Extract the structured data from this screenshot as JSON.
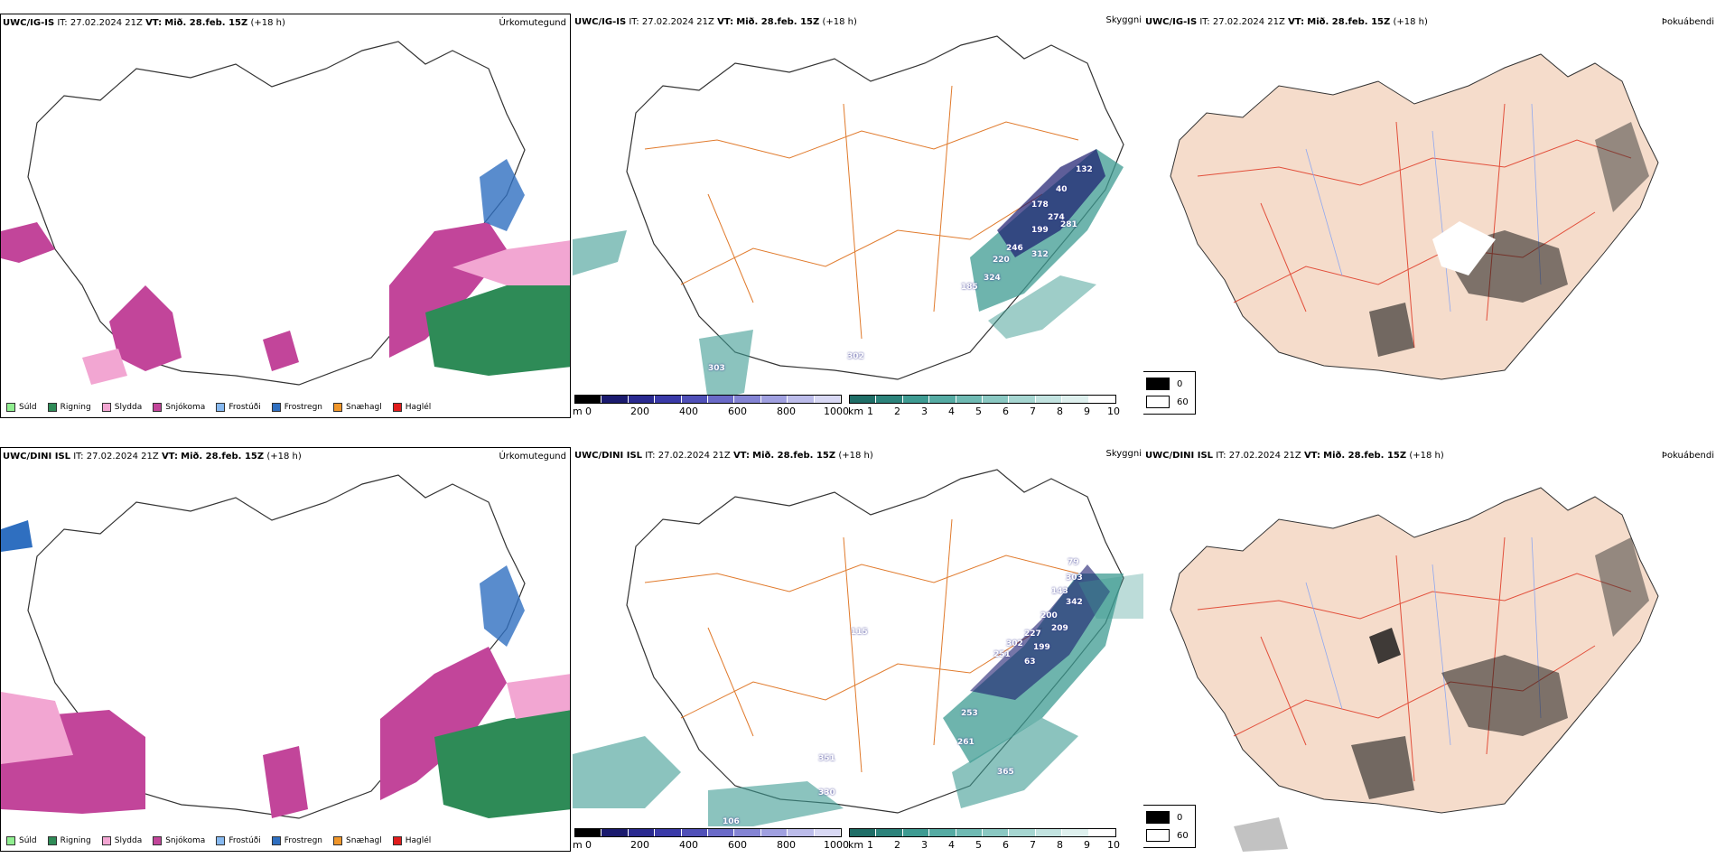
{
  "colors": {
    "suld": "#90ee90",
    "rigning": "#2e8b57",
    "slydda": "#f2a6d2",
    "snjokoma": "#c2459a",
    "frostudi": "#87b9f0",
    "frostregn": "#2f6fc0",
    "snaehagl": "#f0962a",
    "haglel": "#e01c1c",
    "cloud_dark": "#1a1a6e",
    "fog_teal": "#3e9b92",
    "road": "#e07a2c",
    "land": "#f5dccb"
  },
  "rows": [
    {
      "model": "UWC/IG-IS",
      "it": "IT: 27.02.2024 21Z",
      "vt_label": "VT:",
      "vt_value": "Mið. 28.feb. 15Z",
      "lead": "(+18 h)",
      "panels": {
        "precip_title": "Úrkomutegund",
        "cloud_title": "Skyggni",
        "fog_title": "Þokuábendi"
      },
      "cloud_labels": [
        "132",
        "40",
        "178",
        "274",
        "199",
        "281",
        "246",
        "220",
        "312",
        "324",
        "185",
        "302",
        "303"
      ]
    },
    {
      "model": "UWC/DINI ISL",
      "it": "IT: 27.02.2024 21Z",
      "vt_label": "VT:",
      "vt_value": "Mið. 28.feb. 15Z",
      "lead": "(+18 h)",
      "panels": {
        "precip_title": "Úrkomutegund",
        "cloud_title": "Skyggni",
        "fog_title": "Þokuábendi"
      },
      "cloud_labels": [
        "79",
        "303",
        "143",
        "342",
        "200",
        "209",
        "227",
        "199",
        "302",
        "251",
        "63",
        "115",
        "253",
        "261",
        "351",
        "330",
        "365",
        "106"
      ]
    }
  ],
  "precip_legend": [
    "Súld",
    "Rigning",
    "Slydda",
    "Snjókoma",
    "Frostúði",
    "Frostregn",
    "Snæhagl",
    "Haglél"
  ],
  "cloud_scale": {
    "unit_m": "m",
    "ticks_m": [
      "0",
      "200",
      "400",
      "600",
      "800",
      "1000"
    ],
    "unit_km": "km",
    "ticks_km": [
      "1",
      "2",
      "3",
      "4",
      "5",
      "6",
      "7",
      "8",
      "9",
      "10"
    ]
  },
  "fog_legend": [
    "0",
    "60"
  ]
}
